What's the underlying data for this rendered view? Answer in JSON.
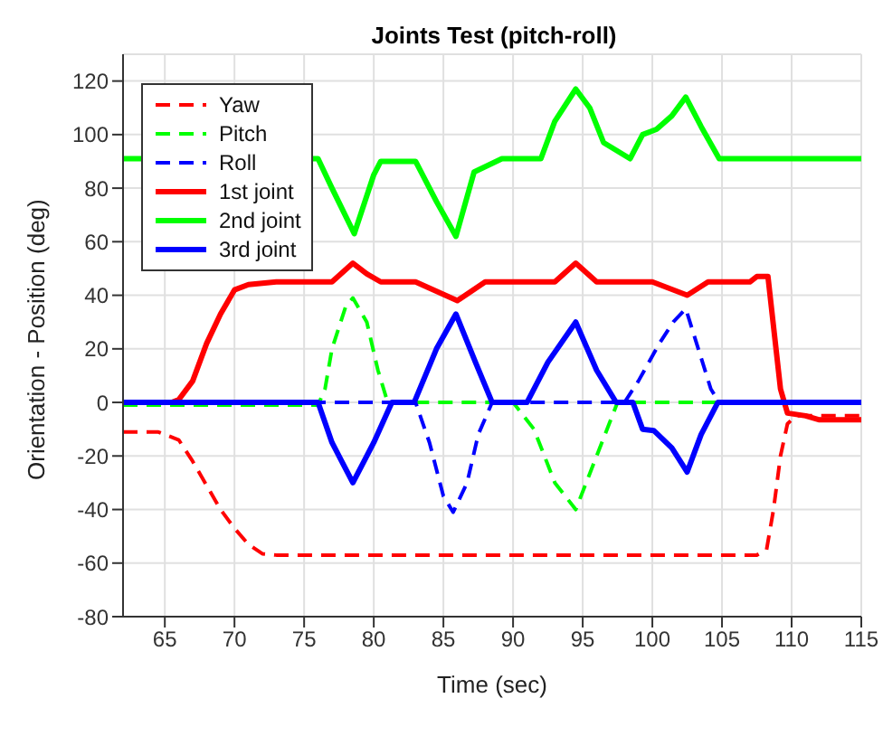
{
  "chart_data": {
    "type": "line",
    "title": "Joints Test (pitch-roll)",
    "xlabel": "Time (sec)",
    "ylabel": "Orientation - Position (deg)",
    "xlim": [
      62,
      115
    ],
    "xticks": [
      65,
      70,
      75,
      80,
      85,
      90,
      95,
      100,
      105,
      110,
      115
    ],
    "ylim": [
      -80,
      130
    ],
    "yticks": [
      -80,
      -60,
      -40,
      -20,
      0,
      20,
      40,
      60,
      80,
      100,
      120
    ],
    "grid": true,
    "legend": "top left",
    "marker": "none",
    "series": [
      {
        "name": "Yaw",
        "color": "#ff0000",
        "line_style": "dashed",
        "x": [
          62,
          64.5,
          66,
          67,
          68,
          69,
          70,
          71,
          72,
          73,
          107.5,
          108.2,
          108.7,
          109.2,
          109.7,
          110.3,
          115
        ],
        "values": [
          -11,
          -11,
          -14,
          -22,
          -31,
          -40,
          -47,
          -53,
          -56.5,
          -57,
          -57,
          -55,
          -40,
          -20,
          -8,
          -5,
          -5
        ]
      },
      {
        "name": "Pitch",
        "color": "#00ff00",
        "line_style": "dashed",
        "x": [
          62,
          76,
          76.5,
          77,
          78,
          78.5,
          79.5,
          80.3,
          81,
          90,
          91.5,
          93,
          94.5,
          96,
          97.5,
          115
        ],
        "values": [
          -1,
          -1,
          5,
          20,
          36,
          39,
          30,
          12,
          0,
          0,
          -10,
          -30,
          -40,
          -20,
          0,
          0
        ]
      },
      {
        "name": "Roll",
        "color": "#0000ff",
        "line_style": "dashed",
        "x": [
          62,
          83,
          84,
          85,
          85.7,
          86.7,
          87.5,
          88.5,
          98,
          99,
          100.5,
          101.5,
          102.4,
          103.3,
          104.2,
          104.8,
          115
        ],
        "values": [
          0,
          0,
          -15,
          -35,
          -41,
          -30,
          -12,
          0,
          0,
          8,
          22,
          30,
          35,
          20,
          5,
          0,
          0
        ]
      },
      {
        "name": "1st joint",
        "color": "#ff0000",
        "line_style": "solid",
        "x": [
          62,
          65.5,
          66,
          67,
          68,
          69,
          70,
          71,
          73,
          77,
          78.5,
          79.5,
          80.5,
          83,
          86,
          88,
          93,
          94.5,
          96,
          100,
          102.5,
          104,
          107,
          107.5,
          108.3,
          109.2,
          109.7,
          111,
          112,
          115
        ],
        "values": [
          0,
          0,
          1,
          8,
          22,
          33,
          42,
          44,
          45,
          45,
          52,
          48,
          45,
          45,
          38,
          45,
          45,
          52,
          45,
          45,
          40,
          45,
          45,
          47,
          47,
          5,
          -4,
          -5,
          -6.5,
          -6.5
        ]
      },
      {
        "name": "2nd joint",
        "color": "#00ff00",
        "line_style": "solid",
        "x": [
          62,
          76,
          77,
          78.6,
          80,
          80.5,
          83,
          84.5,
          85.9,
          87.2,
          89.2,
          92,
          93,
          94.5,
          95.5,
          96.5,
          98.4,
          99.3,
          100.3,
          101.4,
          102.4,
          103.5,
          104.8,
          115
        ],
        "values": [
          91,
          91,
          80,
          63,
          85,
          90,
          90,
          75,
          62,
          86,
          91,
          91,
          105,
          117,
          110,
          97,
          91,
          100,
          102,
          107,
          114,
          103,
          91,
          91
        ]
      },
      {
        "name": "3rd joint",
        "color": "#0000ff",
        "line_style": "solid",
        "x": [
          62,
          76,
          77,
          78.5,
          80,
          81.3,
          82.9,
          84.5,
          85.9,
          87.3,
          88.5,
          91,
          92.5,
          94.5,
          96,
          97.4,
          98.6,
          99.3,
          100.1,
          101.4,
          102.5,
          103.5,
          104.7,
          115
        ],
        "values": [
          0,
          0,
          -15,
          -30,
          -15,
          0,
          0,
          20,
          33,
          15,
          0,
          0,
          15,
          30,
          12,
          0,
          0,
          -10,
          -10.5,
          -17,
          -26,
          -12,
          0,
          0
        ]
      }
    ]
  }
}
